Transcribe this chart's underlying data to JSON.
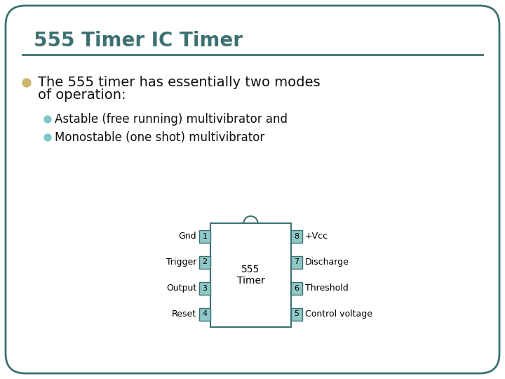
{
  "title": "555 Timer IC Timer",
  "title_color": "#3D7070",
  "title_fontsize": 20,
  "slide_bg": "#FFFFFF",
  "border_color": "#3D7070",
  "bullet1_color": "#C8B870",
  "bullet1_fontsize": 14,
  "sub_bullet_color": "#7FC8C8",
  "sub_bullet1": "Astable (free running) multivibrator and",
  "sub_bullet2": "Monostable (one shot) multivibrator",
  "sub_bullet_fontsize": 12,
  "ic_fill": "#FFFFFF",
  "ic_border_color": "#3D7070",
  "pin_box_color": "#90C8C8",
  "left_pins": [
    "Gnd",
    "Trigger",
    "Output",
    "Reset"
  ],
  "left_pin_nums": [
    "1",
    "2",
    "3",
    "4"
  ],
  "right_pins": [
    "+Vcc",
    "Discharge",
    "Threshold",
    "Control voltage"
  ],
  "right_pin_nums": [
    "8",
    "7",
    "6",
    "5"
  ],
  "ic_label": "555\nTimer",
  "ic_label_fontsize": 10,
  "pin_fontsize": 9,
  "pin_num_fontsize": 8,
  "hr_color": "#3D7070"
}
